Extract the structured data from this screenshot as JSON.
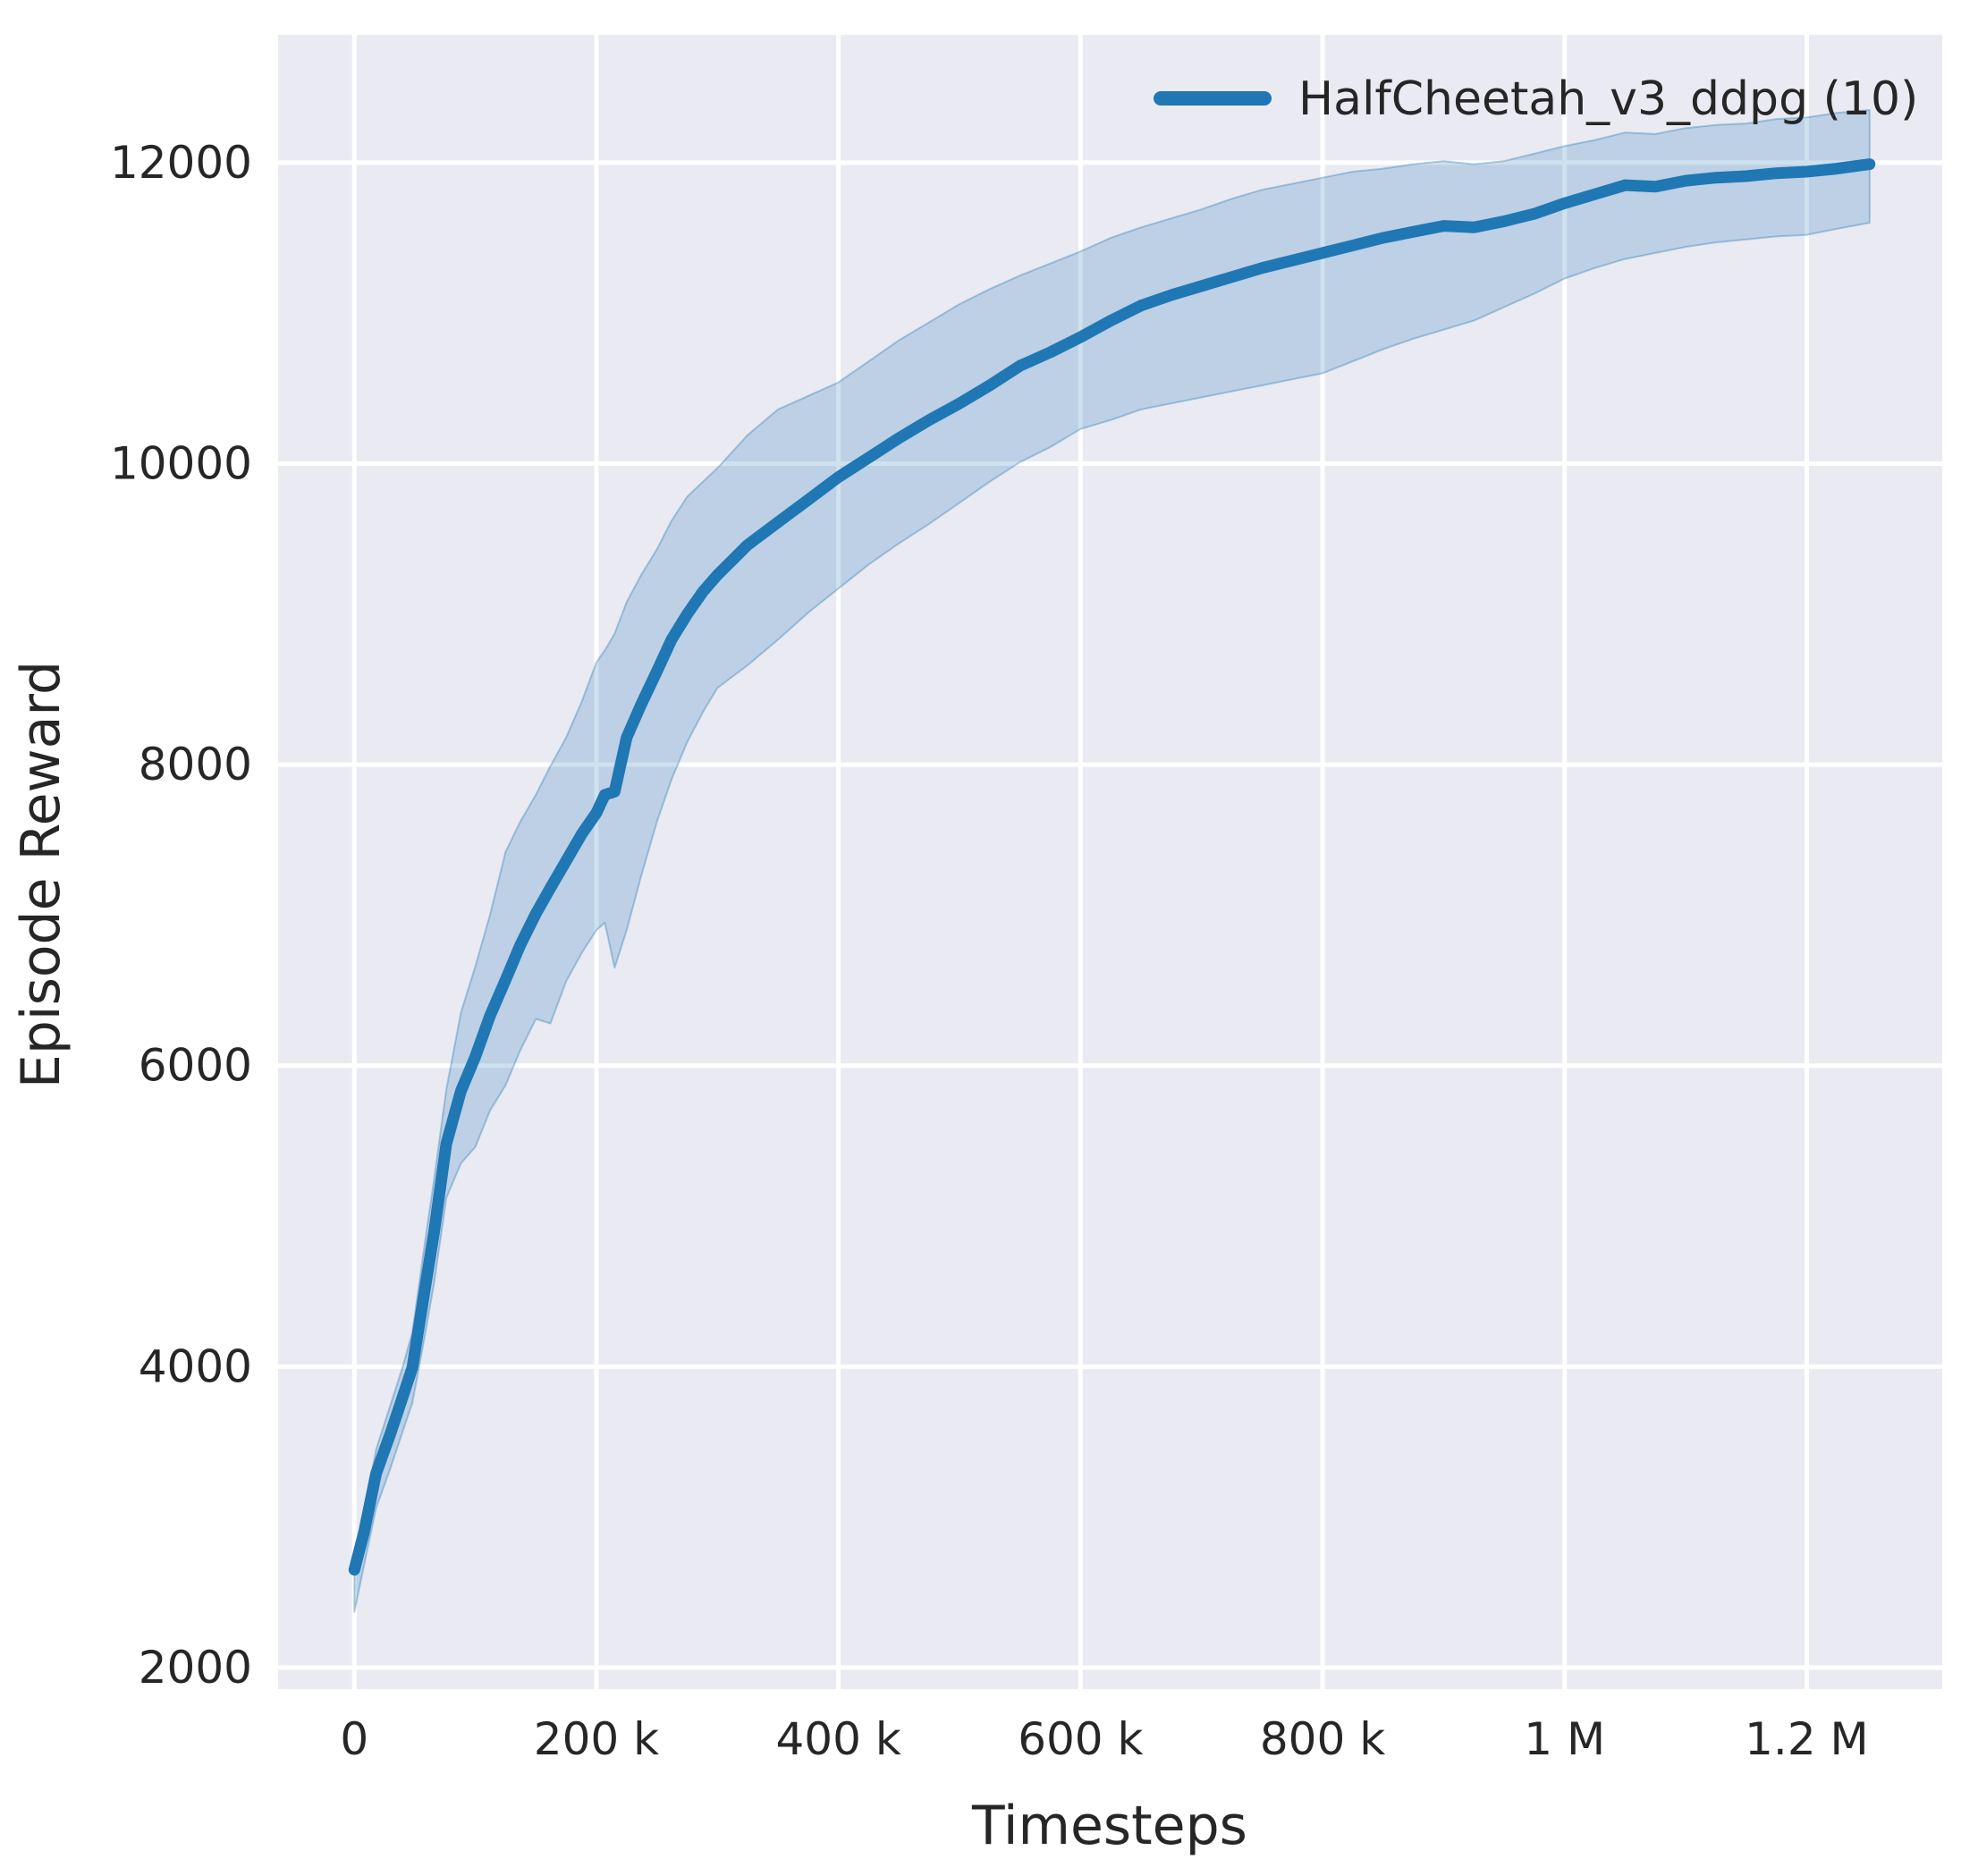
{
  "chart_data": {
    "type": "line",
    "title": "",
    "xlabel": "Timesteps",
    "ylabel": "Episode Reward",
    "grid": true,
    "legend_position": "upper right",
    "background": "#eaeaf2",
    "text_color": "#262626",
    "xlim": [
      -63000,
      1312000
    ],
    "ylim": [
      1857,
      12849
    ],
    "x_ticks": [
      {
        "value": 0,
        "label": "0"
      },
      {
        "value": 200000,
        "label": "200 k"
      },
      {
        "value": 400000,
        "label": "400 k"
      },
      {
        "value": 600000,
        "label": "600 k"
      },
      {
        "value": 800000,
        "label": "800 k"
      },
      {
        "value": 1000000,
        "label": "1 M"
      },
      {
        "value": 1200000,
        "label": "1.2 M"
      }
    ],
    "y_ticks": [
      {
        "value": 2000,
        "label": "2000"
      },
      {
        "value": 4000,
        "label": "4000"
      },
      {
        "value": 6000,
        "label": "6000"
      },
      {
        "value": 8000,
        "label": "8000"
      },
      {
        "value": 10000,
        "label": "10000"
      },
      {
        "value": 12000,
        "label": "12000"
      }
    ],
    "series": [
      {
        "name": "HalfCheetah_v3_ddpg (10)",
        "color": "#1f77b4",
        "band_opacity": 0.22,
        "x": [
          0,
          8000,
          18000,
          30000,
          40000,
          48000,
          57000,
          66000,
          76000,
          88000,
          100000,
          112000,
          125000,
          137000,
          150000,
          162000,
          175000,
          188000,
          200000,
          207000,
          215000,
          225000,
          237000,
          250000,
          262000,
          275000,
          288000,
          300000,
          325000,
          350000,
          375000,
          400000,
          425000,
          450000,
          475000,
          500000,
          525000,
          550000,
          575000,
          600000,
          625000,
          650000,
          675000,
          700000,
          725000,
          750000,
          775000,
          800000,
          825000,
          850000,
          875000,
          900000,
          925000,
          950000,
          975000,
          1000000,
          1025000,
          1050000,
          1075000,
          1100000,
          1125000,
          1150000,
          1175000,
          1200000,
          1225000,
          1252000
        ],
        "mean": [
          2650,
          2900,
          3290,
          3560,
          3800,
          3995,
          4450,
          4900,
          5480,
          5830,
          6060,
          6330,
          6570,
          6800,
          7010,
          7180,
          7360,
          7540,
          7680,
          7800,
          7820,
          8180,
          8400,
          8620,
          8830,
          9000,
          9150,
          9260,
          9460,
          9610,
          9760,
          9910,
          10040,
          10170,
          10290,
          10400,
          10520,
          10650,
          10740,
          10840,
          10950,
          11050,
          11120,
          11180,
          11240,
          11300,
          11350,
          11400,
          11450,
          11500,
          11540,
          11580,
          11570,
          11610,
          11660,
          11730,
          11790,
          11850,
          11840,
          11880,
          11900,
          11910,
          11930,
          11940,
          11960,
          11990
        ],
        "lower": [
          2370,
          2680,
          3060,
          3330,
          3570,
          3760,
          4150,
          4560,
          5120,
          5350,
          5460,
          5700,
          5870,
          6100,
          6310,
          6280,
          6560,
          6750,
          6900,
          6950,
          6650,
          6900,
          7260,
          7620,
          7900,
          8150,
          8350,
          8510,
          8660,
          8830,
          9010,
          9170,
          9330,
          9470,
          9600,
          9740,
          9880,
          10010,
          10110,
          10230,
          10290,
          10360,
          10400,
          10440,
          10480,
          10520,
          10560,
          10600,
          10680,
          10760,
          10830,
          10890,
          10950,
          11040,
          11130,
          11230,
          11300,
          11360,
          11400,
          11440,
          11470,
          11490,
          11510,
          11520,
          11560,
          11600
        ],
        "upper": [
          2760,
          3020,
          3450,
          3750,
          4000,
          4230,
          4750,
          5250,
          5840,
          6350,
          6660,
          7000,
          7420,
          7620,
          7800,
          7990,
          8180,
          8420,
          8680,
          8760,
          8870,
          9080,
          9260,
          9430,
          9620,
          9780,
          9880,
          9970,
          10190,
          10360,
          10450,
          10540,
          10680,
          10820,
          10940,
          11060,
          11160,
          11250,
          11330,
          11410,
          11500,
          11570,
          11630,
          11690,
          11760,
          11820,
          11860,
          11900,
          11940,
          11960,
          11990,
          12010,
          11990,
          12010,
          12060,
          12110,
          12150,
          12200,
          12190,
          12230,
          12250,
          12260,
          12290,
          12300,
          12330,
          12350
        ]
      }
    ]
  }
}
